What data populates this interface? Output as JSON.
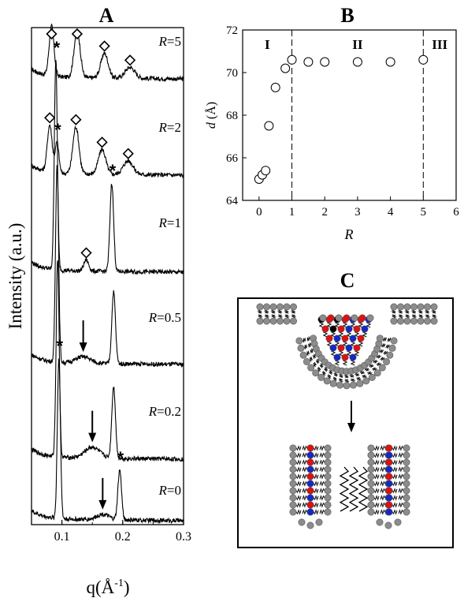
{
  "chart_data": [
    {
      "panel": "A",
      "type": "line",
      "xlabel_main": "q(Å",
      "xlabel_sup": "-1",
      "xlabel_close": ")",
      "ylabel": "Intensity (a.u.)",
      "xlim": [
        0.05,
        0.3
      ],
      "x_ticks": [
        "0.1",
        "0.2",
        "0.3"
      ],
      "r_prefix": "R",
      "series": [
        {
          "label": "=5",
          "peaks": [
            {
              "q": 0.083,
              "amp": 0.9,
              "w": 0.004
            },
            {
              "q": 0.125,
              "amp": 0.85,
              "w": 0.005
            },
            {
              "q": 0.17,
              "amp": 0.45,
              "w": 0.006
            },
            {
              "q": 0.212,
              "amp": 0.2,
              "w": 0.008
            }
          ],
          "markers": [
            {
              "q": 0.083,
              "sym": "diamond"
            },
            {
              "q": 0.125,
              "sym": "diamond"
            },
            {
              "q": 0.17,
              "sym": "diamond"
            },
            {
              "q": 0.212,
              "sym": "diamond"
            }
          ]
        },
        {
          "label": "=2",
          "peaks": [
            {
              "q": 0.08,
              "amp": 0.85,
              "w": 0.004
            },
            {
              "q": 0.092,
              "amp": 0.55,
              "w": 0.003
            },
            {
              "q": 0.123,
              "amp": 0.85,
              "w": 0.005
            },
            {
              "q": 0.166,
              "amp": 0.45,
              "w": 0.006
            },
            {
              "q": 0.209,
              "amp": 0.25,
              "w": 0.008
            }
          ],
          "markers": [
            {
              "q": 0.08,
              "sym": "diamond"
            },
            {
              "q": 0.092,
              "sym": "star"
            },
            {
              "q": 0.123,
              "sym": "diamond"
            },
            {
              "q": 0.166,
              "sym": "diamond"
            },
            {
              "q": 0.209,
              "sym": "diamond"
            }
          ]
        },
        {
          "label": "=1",
          "peaks": [
            {
              "q": 0.09,
              "amp": 3.8,
              "w": 0.0025
            },
            {
              "q": 0.14,
              "amp": 0.2,
              "w": 0.004
            },
            {
              "q": 0.182,
              "amp": 1.6,
              "w": 0.003
            }
          ],
          "markers": [
            {
              "q": 0.09,
              "sym": "star"
            },
            {
              "q": 0.14,
              "sym": "diamond"
            },
            {
              "q": 0.182,
              "sym": "star"
            }
          ]
        },
        {
          "label": "=0.5",
          "peaks": [
            {
              "q": 0.092,
              "amp": 3.6,
              "w": 0.0025
            },
            {
              "q": 0.135,
              "amp": 0.12,
              "w": 0.012
            },
            {
              "q": 0.185,
              "amp": 1.3,
              "w": 0.003
            }
          ],
          "markers": [
            {
              "q": 0.135,
              "sym": "arrow"
            }
          ]
        },
        {
          "label": "=0.2",
          "peaks": [
            {
              "q": 0.093,
              "amp": 3.6,
              "w": 0.0025
            },
            {
              "q": 0.15,
              "amp": 0.2,
              "w": 0.012
            },
            {
              "q": 0.185,
              "amp": 1.3,
              "w": 0.003
            }
          ],
          "markers": [
            {
              "q": 0.15,
              "sym": "arrow"
            }
          ]
        },
        {
          "label": "=0",
          "peaks": [
            {
              "q": 0.095,
              "amp": 2.9,
              "w": 0.0025
            },
            {
              "q": 0.167,
              "amp": 0.1,
              "w": 0.01
            },
            {
              "q": 0.195,
              "amp": 0.9,
              "w": 0.003
            }
          ],
          "markers": [
            {
              "q": 0.095,
              "sym": "star"
            },
            {
              "q": 0.167,
              "sym": "arrow"
            },
            {
              "q": 0.195,
              "sym": "star"
            }
          ]
        }
      ]
    },
    {
      "panel": "B",
      "type": "scatter",
      "xlabel": "R",
      "ylabel_main": "d",
      "ylabel_unit": "(Å)",
      "xlim": [
        -0.5,
        6
      ],
      "ylim": [
        64,
        72
      ],
      "x_ticks": [
        0,
        1,
        2,
        3,
        4,
        5,
        6
      ],
      "y_ticks": [
        64,
        66,
        68,
        70,
        72
      ],
      "points": [
        {
          "x": 0,
          "y": 65.0
        },
        {
          "x": 0.1,
          "y": 65.2
        },
        {
          "x": 0.2,
          "y": 65.4
        },
        {
          "x": 0.3,
          "y": 67.5
        },
        {
          "x": 0.5,
          "y": 69.3
        },
        {
          "x": 0.8,
          "y": 70.2
        },
        {
          "x": 1.0,
          "y": 70.6
        },
        {
          "x": 1.5,
          "y": 70.5
        },
        {
          "x": 2.0,
          "y": 70.5
        },
        {
          "x": 3.0,
          "y": 70.5
        },
        {
          "x": 4.0,
          "y": 70.5
        },
        {
          "x": 5.0,
          "y": 70.6
        }
      ],
      "dashed_lines_x": [
        1,
        5
      ],
      "region_labels": [
        {
          "text": "I",
          "x": 0.25
        },
        {
          "text": "II",
          "x": 3.0
        },
        {
          "text": "III",
          "x": 5.5
        }
      ]
    }
  ],
  "panel_labels": {
    "a": "A",
    "b": "B",
    "c": "C"
  },
  "colors": {
    "head_gray": "#8c8c8c",
    "head_red": "#e01010",
    "head_blue": "#1428c8",
    "line": "#000000"
  }
}
